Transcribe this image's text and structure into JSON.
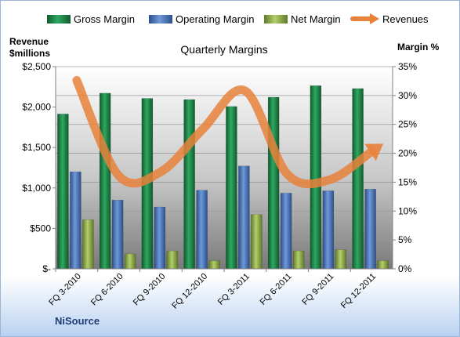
{
  "chart_data": {
    "type": "bar",
    "title": "Quarterly Margins",
    "source_label": "NiSource",
    "y_left_label_line1": "Revenue",
    "y_left_label_line2": "$millions",
    "y_right_label": "Margin %",
    "categories": [
      "FQ 3-2010",
      "FQ 6-2010",
      "FQ 9-2010",
      "FQ 12-2010",
      "FQ 3-2011",
      "FQ 6-2011",
      "FQ 9-2011",
      "FQ 12-2011"
    ],
    "left_axis": {
      "min": 0,
      "max": 2500,
      "ticks": [
        0,
        500,
        1000,
        1500,
        2000,
        2500
      ],
      "tick_labels": [
        "$-",
        "$500",
        "$1,000",
        "$1,500",
        "$2,000",
        "$2,500"
      ]
    },
    "right_axis": {
      "min": 0,
      "max": 35,
      "ticks": [
        0,
        5,
        10,
        15,
        20,
        25,
        30,
        35
      ],
      "tick_labels": [
        "0%",
        "5%",
        "10%",
        "15%",
        "20%",
        "25%",
        "30%",
        "35%"
      ]
    },
    "series": [
      {
        "name": "Gross Margin",
        "axis": "right",
        "values": [
          26.8,
          30.4,
          29.5,
          29.3,
          28.1,
          29.7,
          31.7,
          31.2
        ]
      },
      {
        "name": "Operating Margin",
        "axis": "right",
        "values": [
          16.8,
          11.9,
          10.7,
          13.6,
          17.8,
          13.1,
          13.5,
          13.8
        ]
      },
      {
        "name": "Net Margin",
        "axis": "right",
        "values": [
          8.5,
          2.6,
          3.1,
          1.4,
          9.4,
          3.1,
          3.3,
          1.4
        ]
      },
      {
        "name": "Revenues",
        "axis": "left",
        "type": "line",
        "values": [
          2330,
          1150,
          1200,
          1730,
          2200,
          1170,
          1100,
          1450
        ]
      }
    ],
    "legend_position": "top",
    "grid": true,
    "colors": {
      "gross": "#1e8c4a",
      "operating": "#4f7dc4",
      "net": "#98b54f",
      "revenues": "#e8813a",
      "plot_top": "#ffffff",
      "plot_bottom": "#7f7f7f",
      "bottom_band": "#b8d1f1"
    }
  }
}
